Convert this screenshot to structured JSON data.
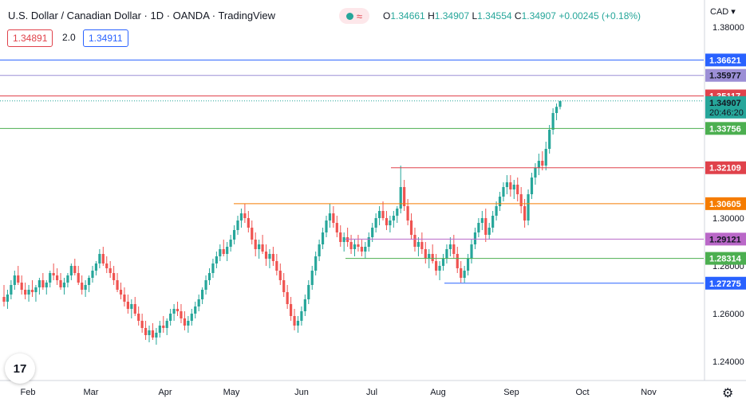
{
  "header": {
    "title": "U.S. Dollar / Canadian Dollar · 1D · OANDA · TradingView",
    "ohlc": [
      {
        "k": "O",
        "v": "1.34661"
      },
      {
        "k": "H",
        "v": "1.34907"
      },
      {
        "k": "L",
        "v": "1.34554"
      },
      {
        "k": "C",
        "v": "1.34907"
      }
    ],
    "change": "+0.00245 (+0.18%)",
    "bid": "1.34891",
    "spread": "2.0",
    "ask": "1.34911",
    "currency": "CAD"
  },
  "logo_text": "17",
  "chart_data": {
    "type": "candlestick",
    "title": "U.S. Dollar / Canadian Dollar · 1D · OANDA · TradingView",
    "y_range": [
      1.232,
      1.39
    ],
    "y_ticks": [
      "1.38000",
      "1.30000",
      "1.28000",
      "1.26000",
      "1.24000"
    ],
    "x_ticks": [
      "Feb",
      "Mar",
      "Apr",
      "May",
      "Jun",
      "Jul",
      "Aug",
      "Sep",
      "Oct",
      "Nov"
    ],
    "price_lines": [
      {
        "value": 1.36621,
        "label": "1.36621",
        "color": "#2962ff",
        "start": "Feb"
      },
      {
        "value": 1.35977,
        "label": "1.35977",
        "color": "#9c8fd6",
        "start": "Feb"
      },
      {
        "value": 1.35117,
        "label": "1.35117",
        "color": "#e0424b",
        "start": "Feb"
      },
      {
        "value": 1.33756,
        "label": "1.33756",
        "color": "#4caf50",
        "start": "Feb"
      },
      {
        "value": 1.32109,
        "label": "1.32109",
        "color": "#e0424b",
        "start": "Jul"
      },
      {
        "value": 1.30605,
        "label": "1.30605",
        "color": "#f57c00",
        "start": "May"
      },
      {
        "value": 1.29121,
        "label": "1.29121",
        "color": "#ba68c8",
        "start": "Jun"
      },
      {
        "value": 1.28314,
        "label": "1.28314",
        "color": "#4caf50",
        "start": "Jun"
      },
      {
        "value": 1.27275,
        "label": "1.27275",
        "color": "#2962ff",
        "start": "Aug"
      }
    ],
    "last_price": {
      "value": 1.34907,
      "label": "1.34907",
      "countdown": "20:46:20",
      "color": "#26a69a"
    },
    "candles": [
      [
        1.267,
        1.272,
        1.263,
        1.265
      ],
      [
        1.265,
        1.27,
        1.262,
        1.268
      ],
      [
        1.268,
        1.274,
        1.266,
        1.272
      ],
      [
        1.272,
        1.278,
        1.27,
        1.276
      ],
      [
        1.276,
        1.28,
        1.272,
        1.273
      ],
      [
        1.273,
        1.276,
        1.268,
        1.27
      ],
      [
        1.27,
        1.273,
        1.266,
        1.268
      ],
      [
        1.268,
        1.272,
        1.265,
        1.27
      ],
      [
        1.27,
        1.274,
        1.267,
        1.269
      ],
      [
        1.269,
        1.272,
        1.265,
        1.271
      ],
      [
        1.271,
        1.275,
        1.268,
        1.274
      ],
      [
        1.274,
        1.277,
        1.27,
        1.271
      ],
      [
        1.271,
        1.274,
        1.268,
        1.273
      ],
      [
        1.273,
        1.278,
        1.271,
        1.277
      ],
      [
        1.277,
        1.281,
        1.274,
        1.276
      ],
      [
        1.276,
        1.279,
        1.272,
        1.274
      ],
      [
        1.274,
        1.277,
        1.27,
        1.271
      ],
      [
        1.271,
        1.275,
        1.268,
        1.273
      ],
      [
        1.273,
        1.277,
        1.271,
        1.276
      ],
      [
        1.276,
        1.281,
        1.274,
        1.28
      ],
      [
        1.28,
        1.283,
        1.276,
        1.277
      ],
      [
        1.277,
        1.28,
        1.272,
        1.273
      ],
      [
        1.273,
        1.276,
        1.268,
        1.27
      ],
      [
        1.27,
        1.274,
        1.267,
        1.272
      ],
      [
        1.272,
        1.276,
        1.269,
        1.275
      ],
      [
        1.275,
        1.28,
        1.273,
        1.278
      ],
      [
        1.278,
        1.282,
        1.276,
        1.281
      ],
      [
        1.281,
        1.287,
        1.279,
        1.285
      ],
      [
        1.285,
        1.288,
        1.28,
        1.281
      ],
      [
        1.281,
        1.284,
        1.277,
        1.279
      ],
      [
        1.279,
        1.282,
        1.275,
        1.277
      ],
      [
        1.277,
        1.28,
        1.272,
        1.274
      ],
      [
        1.274,
        1.277,
        1.269,
        1.27
      ],
      [
        1.27,
        1.273,
        1.266,
        1.268
      ],
      [
        1.268,
        1.271,
        1.263,
        1.265
      ],
      [
        1.265,
        1.268,
        1.26,
        1.262
      ],
      [
        1.262,
        1.266,
        1.258,
        1.264
      ],
      [
        1.264,
        1.267,
        1.259,
        1.26
      ],
      [
        1.26,
        1.263,
        1.255,
        1.257
      ],
      [
        1.257,
        1.26,
        1.252,
        1.254
      ],
      [
        1.254,
        1.257,
        1.249,
        1.251
      ],
      [
        1.251,
        1.255,
        1.248,
        1.253
      ],
      [
        1.253,
        1.256,
        1.249,
        1.25
      ],
      [
        1.25,
        1.254,
        1.247,
        1.252
      ],
      [
        1.252,
        1.257,
        1.25,
        1.255
      ],
      [
        1.255,
        1.259,
        1.252,
        1.254
      ],
      [
        1.254,
        1.258,
        1.251,
        1.257
      ],
      [
        1.257,
        1.262,
        1.255,
        1.26
      ],
      [
        1.26,
        1.264,
        1.257,
        1.262
      ],
      [
        1.262,
        1.265,
        1.259,
        1.261
      ],
      [
        1.261,
        1.264,
        1.256,
        1.258
      ],
      [
        1.258,
        1.261,
        1.253,
        1.255
      ],
      [
        1.255,
        1.259,
        1.252,
        1.257
      ],
      [
        1.257,
        1.262,
        1.255,
        1.26
      ],
      [
        1.26,
        1.265,
        1.258,
        1.263
      ],
      [
        1.263,
        1.268,
        1.261,
        1.266
      ],
      [
        1.266,
        1.271,
        1.264,
        1.27
      ],
      [
        1.27,
        1.276,
        1.268,
        1.274
      ],
      [
        1.274,
        1.279,
        1.272,
        1.277
      ],
      [
        1.277,
        1.283,
        1.275,
        1.281
      ],
      [
        1.281,
        1.286,
        1.279,
        1.284
      ],
      [
        1.284,
        1.289,
        1.282,
        1.287
      ],
      [
        1.287,
        1.291,
        1.284,
        1.285
      ],
      [
        1.285,
        1.29,
        1.282,
        1.288
      ],
      [
        1.288,
        1.293,
        1.286,
        1.291
      ],
      [
        1.291,
        1.297,
        1.289,
        1.295
      ],
      [
        1.295,
        1.301,
        1.293,
        1.299
      ],
      [
        1.299,
        1.304,
        1.296,
        1.302
      ],
      [
        1.302,
        1.306,
        1.298,
        1.3
      ],
      [
        1.3,
        1.303,
        1.294,
        1.296
      ],
      [
        1.296,
        1.299,
        1.289,
        1.291
      ],
      [
        1.291,
        1.294,
        1.284,
        1.287
      ],
      [
        1.287,
        1.291,
        1.283,
        1.289
      ],
      [
        1.289,
        1.293,
        1.285,
        1.286
      ],
      [
        1.286,
        1.289,
        1.28,
        1.283
      ],
      [
        1.283,
        1.287,
        1.279,
        1.285
      ],
      [
        1.285,
        1.288,
        1.28,
        1.282
      ],
      [
        1.282,
        1.285,
        1.276,
        1.278
      ],
      [
        1.278,
        1.281,
        1.272,
        1.274
      ],
      [
        1.274,
        1.277,
        1.267,
        1.269
      ],
      [
        1.269,
        1.272,
        1.262,
        1.264
      ],
      [
        1.264,
        1.267,
        1.257,
        1.259
      ],
      [
        1.259,
        1.262,
        1.253,
        1.255
      ],
      [
        1.255,
        1.259,
        1.252,
        1.257
      ],
      [
        1.257,
        1.263,
        1.255,
        1.261
      ],
      [
        1.261,
        1.268,
        1.259,
        1.266
      ],
      [
        1.266,
        1.274,
        1.264,
        1.272
      ],
      [
        1.272,
        1.28,
        1.27,
        1.278
      ],
      [
        1.278,
        1.286,
        1.276,
        1.284
      ],
      [
        1.284,
        1.291,
        1.282,
        1.289
      ],
      [
        1.289,
        1.296,
        1.287,
        1.294
      ],
      [
        1.294,
        1.301,
        1.292,
        1.299
      ],
      [
        1.299,
        1.306,
        1.296,
        1.302
      ],
      [
        1.302,
        1.305,
        1.296,
        1.298
      ],
      [
        1.298,
        1.301,
        1.292,
        1.294
      ],
      [
        1.294,
        1.297,
        1.288,
        1.29
      ],
      [
        1.29,
        1.294,
        1.286,
        1.292
      ],
      [
        1.292,
        1.296,
        1.288,
        1.29
      ],
      [
        1.29,
        1.293,
        1.285,
        1.287
      ],
      [
        1.287,
        1.291,
        1.284,
        1.289
      ],
      [
        1.289,
        1.293,
        1.286,
        1.288
      ],
      [
        1.288,
        1.291,
        1.284,
        1.286
      ],
      [
        1.286,
        1.29,
        1.283,
        1.288
      ],
      [
        1.288,
        1.294,
        1.286,
        1.292
      ],
      [
        1.292,
        1.298,
        1.29,
        1.296
      ],
      [
        1.296,
        1.302,
        1.294,
        1.3
      ],
      [
        1.3,
        1.305,
        1.297,
        1.303
      ],
      [
        1.303,
        1.307,
        1.299,
        1.3
      ],
      [
        1.3,
        1.303,
        1.295,
        1.297
      ],
      [
        1.297,
        1.301,
        1.294,
        1.299
      ],
      [
        1.299,
        1.303,
        1.296,
        1.301
      ],
      [
        1.301,
        1.305,
        1.298,
        1.304
      ],
      [
        1.304,
        1.322,
        1.302,
        1.313
      ],
      [
        1.313,
        1.316,
        1.303,
        1.305
      ],
      [
        1.305,
        1.308,
        1.297,
        1.299
      ],
      [
        1.299,
        1.302,
        1.291,
        1.293
      ],
      [
        1.293,
        1.296,
        1.286,
        1.288
      ],
      [
        1.288,
        1.292,
        1.284,
        1.29
      ],
      [
        1.29,
        1.294,
        1.285,
        1.287
      ],
      [
        1.287,
        1.29,
        1.281,
        1.283
      ],
      [
        1.283,
        1.287,
        1.279,
        1.285
      ],
      [
        1.285,
        1.289,
        1.281,
        1.282
      ],
      [
        1.282,
        1.285,
        1.276,
        1.278
      ],
      [
        1.278,
        1.282,
        1.274,
        1.28
      ],
      [
        1.28,
        1.285,
        1.278,
        1.283
      ],
      [
        1.283,
        1.289,
        1.281,
        1.287
      ],
      [
        1.287,
        1.292,
        1.284,
        1.289
      ],
      [
        1.289,
        1.293,
        1.283,
        1.285
      ],
      [
        1.285,
        1.288,
        1.277,
        1.279
      ],
      [
        1.279,
        1.282,
        1.273,
        1.275
      ],
      [
        1.275,
        1.28,
        1.273,
        1.278
      ],
      [
        1.278,
        1.285,
        1.276,
        1.283
      ],
      [
        1.283,
        1.291,
        1.281,
        1.289
      ],
      [
        1.289,
        1.296,
        1.287,
        1.294
      ],
      [
        1.294,
        1.3,
        1.292,
        1.298
      ],
      [
        1.298,
        1.303,
        1.295,
        1.3
      ],
      [
        1.3,
        1.304,
        1.29,
        1.293
      ],
      [
        1.293,
        1.298,
        1.291,
        1.296
      ],
      [
        1.296,
        1.303,
        1.294,
        1.301
      ],
      [
        1.301,
        1.307,
        1.299,
        1.305
      ],
      [
        1.305,
        1.311,
        1.303,
        1.309
      ],
      [
        1.309,
        1.315,
        1.307,
        1.313
      ],
      [
        1.313,
        1.318,
        1.31,
        1.315
      ],
      [
        1.315,
        1.318,
        1.309,
        1.312
      ],
      [
        1.312,
        1.316,
        1.308,
        1.314
      ],
      [
        1.314,
        1.317,
        1.307,
        1.31
      ],
      [
        1.31,
        1.313,
        1.302,
        1.305
      ],
      [
        1.305,
        1.308,
        1.296,
        1.299
      ],
      [
        1.299,
        1.312,
        1.297,
        1.31
      ],
      [
        1.31,
        1.319,
        1.308,
        1.317
      ],
      [
        1.317,
        1.323,
        1.314,
        1.321
      ],
      [
        1.321,
        1.327,
        1.318,
        1.324
      ],
      [
        1.324,
        1.328,
        1.32,
        1.322
      ],
      [
        1.322,
        1.332,
        1.32,
        1.329
      ],
      [
        1.329,
        1.339,
        1.327,
        1.337
      ],
      [
        1.337,
        1.346,
        1.335,
        1.344
      ],
      [
        1.344,
        1.348,
        1.341,
        1.3466
      ],
      [
        1.3466,
        1.34907,
        1.34554,
        1.34907
      ]
    ]
  }
}
